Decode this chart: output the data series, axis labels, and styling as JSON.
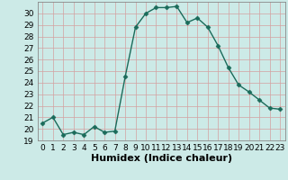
{
  "x": [
    0,
    1,
    2,
    3,
    4,
    5,
    6,
    7,
    8,
    9,
    10,
    11,
    12,
    13,
    14,
    15,
    16,
    17,
    18,
    19,
    20,
    21,
    22,
    23
  ],
  "y": [
    20.5,
    21.0,
    19.5,
    19.7,
    19.5,
    20.2,
    19.7,
    19.8,
    24.5,
    28.8,
    30.0,
    30.5,
    30.5,
    30.6,
    29.2,
    29.6,
    28.8,
    27.2,
    25.3,
    23.8,
    23.2,
    22.5,
    21.8,
    21.7
  ],
  "line_color": "#1a6b5a",
  "marker": "D",
  "markersize": 2.5,
  "bg_color": "#cceae7",
  "grid_color": "#d4a0a0",
  "xlabel": "Humidex (Indice chaleur)",
  "ylim": [
    19,
    31
  ],
  "xlim": [
    -0.5,
    23.5
  ],
  "yticks": [
    19,
    20,
    21,
    22,
    23,
    24,
    25,
    26,
    27,
    28,
    29,
    30
  ],
  "xticks": [
    0,
    1,
    2,
    3,
    4,
    5,
    6,
    7,
    8,
    9,
    10,
    11,
    12,
    13,
    14,
    15,
    16,
    17,
    18,
    19,
    20,
    21,
    22,
    23
  ],
  "tick_fontsize": 6.5,
  "label_fontsize": 8
}
